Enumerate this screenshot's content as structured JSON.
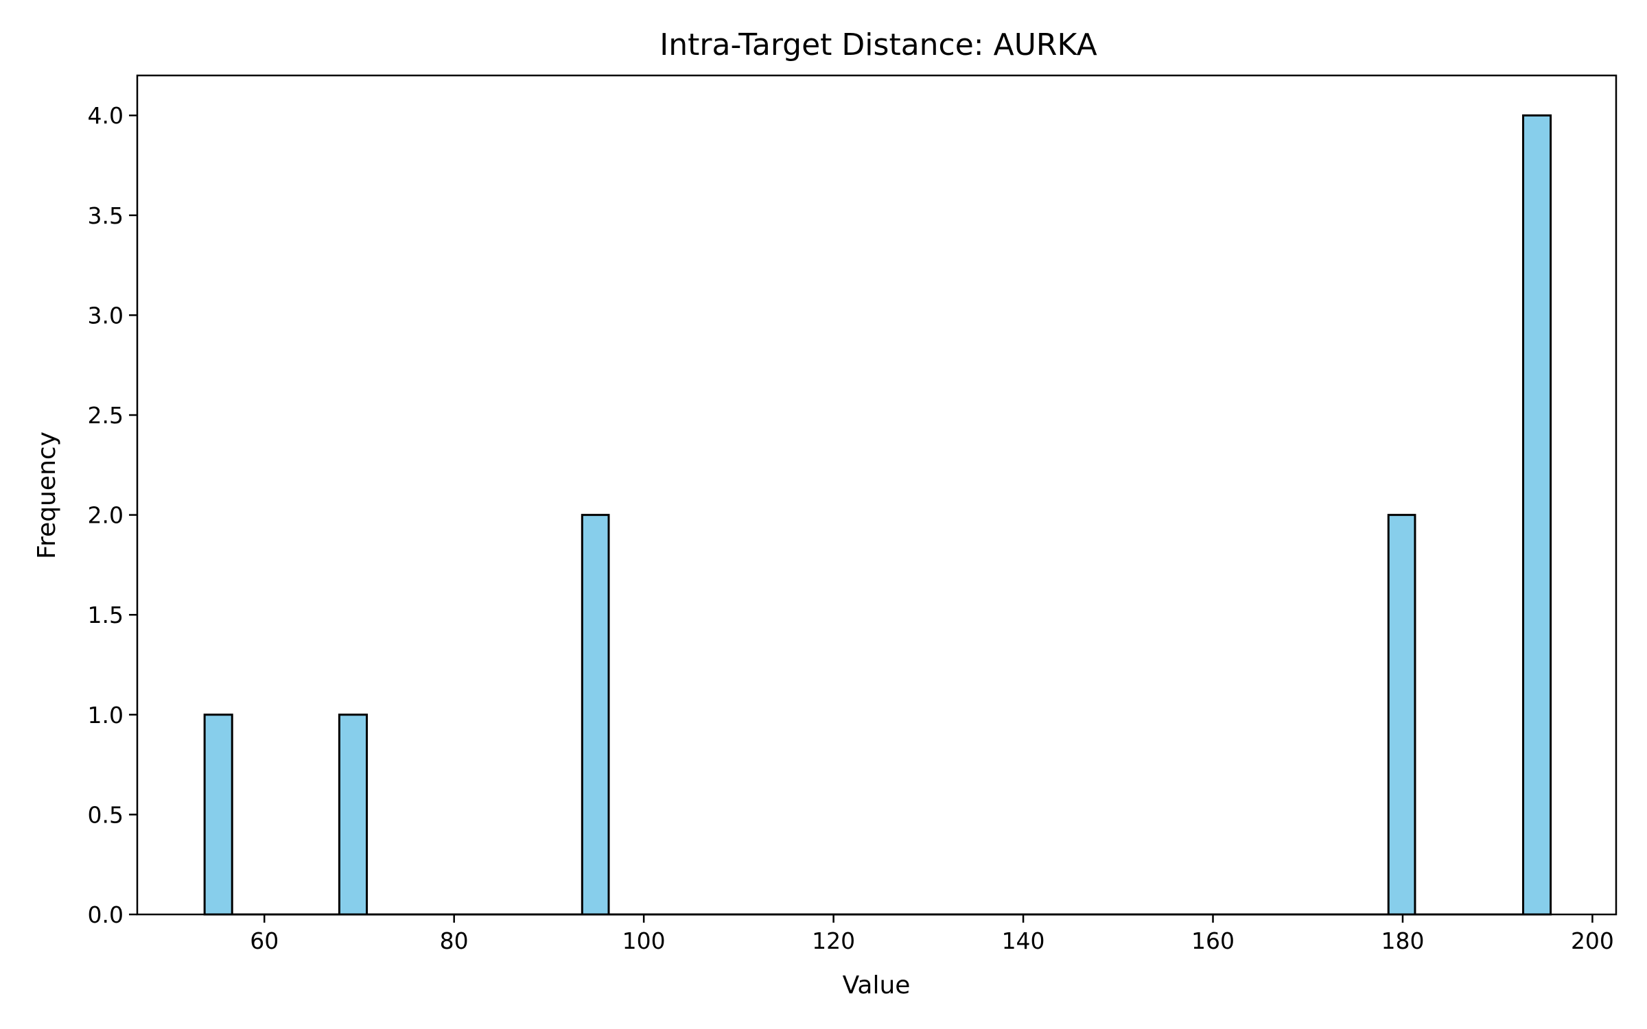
{
  "chart_data": {
    "type": "bar",
    "title": "Intra-Target Distance: AURKA",
    "xlabel": "Value",
    "ylabel": "Frequency",
    "xlim": [
      46.6,
      202.5
    ],
    "ylim": [
      0,
      4.2
    ],
    "xticks": [
      60,
      80,
      100,
      120,
      140,
      160,
      180,
      200
    ],
    "yticks": [
      0.0,
      0.5,
      1.0,
      1.5,
      2.0,
      2.5,
      3.0,
      3.5,
      4.0
    ],
    "xtick_labels": [
      "60",
      "80",
      "100",
      "120",
      "140",
      "160",
      "180",
      "200"
    ],
    "ytick_labels": [
      "0.0",
      "0.5",
      "1.0",
      "1.5",
      "2.0",
      "2.5",
      "3.0",
      "3.5",
      "4.0"
    ],
    "bins": [
      {
        "start": 53.7,
        "end": 56.6,
        "count": 1
      },
      {
        "start": 67.9,
        "end": 70.8,
        "count": 1
      },
      {
        "start": 93.5,
        "end": 96.3,
        "count": 2
      },
      {
        "start": 178.5,
        "end": 181.3,
        "count": 2
      },
      {
        "start": 192.7,
        "end": 195.6,
        "count": 4
      }
    ],
    "bar_color": "#87ceeb",
    "edge_color": "#000000",
    "grid": false,
    "legend": "none"
  }
}
